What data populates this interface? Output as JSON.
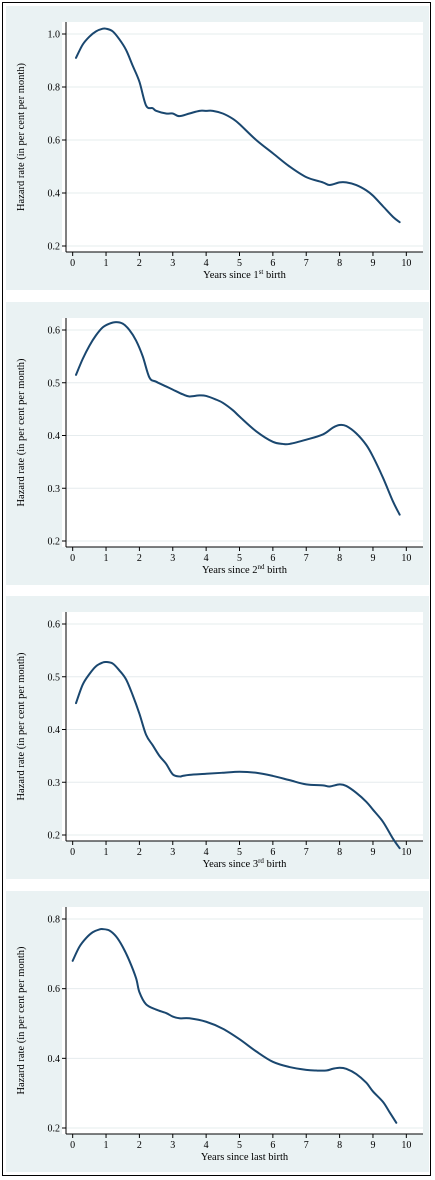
{
  "colors": {
    "panel_bg": "#eaf2f3",
    "plot_bg": "#ffffff",
    "grid": "#e6ecee",
    "line": "#1a476f",
    "axis": "#000000"
  },
  "chart_data": [
    {
      "type": "line",
      "xlabel": {
        "before": "Years since 1",
        "sup": "st",
        "after": " birth"
      },
      "ylabel": "Hazard rate (in per cent per month)",
      "xlim": [
        0,
        10
      ],
      "ylim": [
        0.2,
        1.0
      ],
      "xticks": [
        0,
        1,
        2,
        3,
        4,
        5,
        6,
        7,
        8,
        9,
        10
      ],
      "yticks": [
        0.2,
        0.4,
        0.6,
        0.8,
        1.0
      ],
      "ytick_labels": [
        "0.2",
        "0.4",
        "0.6",
        "0.8",
        "1.0"
      ],
      "grid": true,
      "x": [
        0.1,
        0.3,
        0.5,
        0.7,
        0.9,
        1.0,
        1.2,
        1.4,
        1.6,
        1.8,
        2.0,
        2.2,
        2.4,
        2.5,
        2.8,
        3.0,
        3.2,
        3.5,
        3.8,
        4.0,
        4.2,
        4.5,
        4.8,
        5.0,
        5.5,
        6.0,
        6.5,
        7.0,
        7.5,
        7.7,
        8.0,
        8.2,
        8.5,
        8.8,
        9.0,
        9.3,
        9.6,
        9.8
      ],
      "y": [
        0.91,
        0.96,
        0.99,
        1.01,
        1.02,
        1.02,
        1.01,
        0.98,
        0.94,
        0.88,
        0.82,
        0.73,
        0.72,
        0.71,
        0.7,
        0.7,
        0.69,
        0.7,
        0.71,
        0.71,
        0.71,
        0.7,
        0.68,
        0.66,
        0.6,
        0.55,
        0.5,
        0.46,
        0.44,
        0.43,
        0.44,
        0.44,
        0.43,
        0.41,
        0.39,
        0.35,
        0.31,
        0.29
      ]
    },
    {
      "type": "line",
      "xlabel": {
        "before": "Years since 2",
        "sup": "nd",
        "after": " birth"
      },
      "ylabel": "Hazard rate (in per cent per month)",
      "xlim": [
        0,
        10
      ],
      "ylim": [
        0.2,
        0.6
      ],
      "xticks": [
        0,
        1,
        2,
        3,
        4,
        5,
        6,
        7,
        8,
        9,
        10
      ],
      "yticks": [
        0.2,
        0.3,
        0.4,
        0.5,
        0.6
      ],
      "ytick_labels": [
        "0.2",
        "0.3",
        "0.4",
        "0.5",
        "0.6"
      ],
      "grid": true,
      "x": [
        0.1,
        0.3,
        0.5,
        0.7,
        0.9,
        1.1,
        1.3,
        1.5,
        1.7,
        1.9,
        2.1,
        2.3,
        2.5,
        2.8,
        3.0,
        3.3,
        3.5,
        3.8,
        4.0,
        4.3,
        4.5,
        4.8,
        5.0,
        5.5,
        6.0,
        6.3,
        6.5,
        7.0,
        7.5,
        7.8,
        8.0,
        8.2,
        8.5,
        8.8,
        9.0,
        9.3,
        9.6,
        9.8
      ],
      "y": [
        0.515,
        0.545,
        0.57,
        0.59,
        0.605,
        0.612,
        0.615,
        0.612,
        0.6,
        0.58,
        0.55,
        0.51,
        0.502,
        0.493,
        0.487,
        0.478,
        0.474,
        0.476,
        0.475,
        0.468,
        0.462,
        0.448,
        0.436,
        0.408,
        0.388,
        0.384,
        0.384,
        0.392,
        0.402,
        0.415,
        0.42,
        0.418,
        0.404,
        0.382,
        0.36,
        0.32,
        0.275,
        0.25
      ]
    },
    {
      "type": "line",
      "xlabel": {
        "before": "Years since 3",
        "sup": "rd",
        "after": " birth"
      },
      "ylabel": "Hazard rate (in per cent per month)",
      "xlim": [
        0,
        10
      ],
      "ylim": [
        0.2,
        0.6
      ],
      "xticks": [
        0,
        1,
        2,
        3,
        4,
        5,
        6,
        7,
        8,
        9,
        10
      ],
      "yticks": [
        0.2,
        0.3,
        0.4,
        0.5,
        0.6
      ],
      "ytick_labels": [
        "0.2",
        "0.3",
        "0.4",
        "0.5",
        "0.6"
      ],
      "grid": true,
      "x": [
        0.1,
        0.3,
        0.5,
        0.7,
        0.9,
        1.0,
        1.2,
        1.4,
        1.6,
        1.8,
        2.0,
        2.2,
        2.4,
        2.6,
        2.8,
        3.0,
        3.2,
        3.3,
        3.5,
        4.0,
        4.5,
        5.0,
        5.5,
        6.0,
        6.5,
        7.0,
        7.5,
        7.7,
        8.0,
        8.2,
        8.5,
        8.8,
        9.0,
        9.3,
        9.6,
        9.8
      ],
      "y": [
        0.45,
        0.485,
        0.505,
        0.52,
        0.527,
        0.528,
        0.525,
        0.512,
        0.495,
        0.465,
        0.43,
        0.39,
        0.37,
        0.35,
        0.335,
        0.315,
        0.311,
        0.312,
        0.314,
        0.316,
        0.318,
        0.32,
        0.318,
        0.312,
        0.304,
        0.296,
        0.294,
        0.292,
        0.296,
        0.293,
        0.28,
        0.263,
        0.248,
        0.225,
        0.193,
        0.175
      ]
    },
    {
      "type": "line",
      "xlabel": {
        "before": "Years since last birth",
        "sup": "",
        "after": ""
      },
      "ylabel": "Hazard rate (in per cent per month)",
      "xlim": [
        0,
        10
      ],
      "ylim": [
        0.2,
        0.8
      ],
      "xticks": [
        0,
        1,
        2,
        3,
        4,
        5,
        6,
        7,
        8,
        9,
        10
      ],
      "yticks": [
        0.2,
        0.4,
        0.6,
        0.8
      ],
      "ytick_labels": [
        "0.2",
        "0.4",
        "0.6",
        "0.8"
      ],
      "grid": true,
      "x": [
        0.0,
        0.2,
        0.4,
        0.6,
        0.8,
        0.9,
        1.1,
        1.3,
        1.5,
        1.7,
        1.9,
        2.0,
        2.2,
        2.5,
        2.8,
        3.0,
        3.2,
        3.5,
        4.0,
        4.5,
        5.0,
        5.5,
        6.0,
        6.5,
        7.0,
        7.3,
        7.6,
        7.8,
        8.0,
        8.2,
        8.5,
        8.8,
        9.0,
        9.3,
        9.5,
        9.7
      ],
      "y": [
        0.68,
        0.72,
        0.745,
        0.762,
        0.77,
        0.771,
        0.767,
        0.75,
        0.72,
        0.68,
        0.63,
        0.59,
        0.555,
        0.54,
        0.53,
        0.52,
        0.515,
        0.515,
        0.505,
        0.485,
        0.455,
        0.42,
        0.39,
        0.375,
        0.367,
        0.365,
        0.365,
        0.37,
        0.373,
        0.37,
        0.355,
        0.33,
        0.305,
        0.275,
        0.245,
        0.215
      ]
    }
  ]
}
